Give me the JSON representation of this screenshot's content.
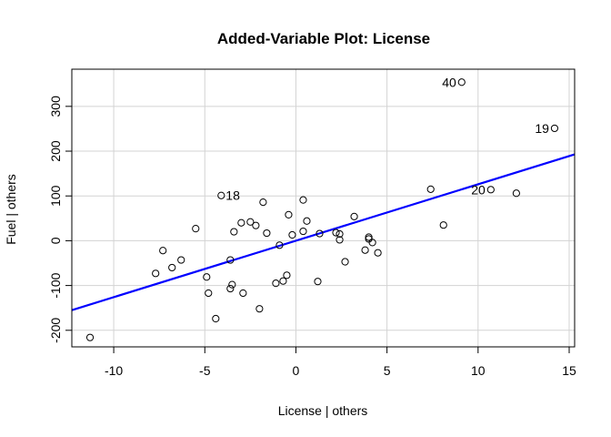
{
  "chart_data": {
    "type": "scatter",
    "title": "Added-Variable Plot: License",
    "xlabel": "License | others",
    "ylabel": "Fuel  | others",
    "xlim": [
      -12.3,
      15.3
    ],
    "ylim": [
      -237,
      383
    ],
    "xticks": [
      -10,
      -5,
      0,
      5,
      10,
      15
    ],
    "yticks": [
      -200,
      -100,
      0,
      100,
      200,
      300
    ],
    "grid": true,
    "regression_line": {
      "slope": 12.6,
      "intercept": 0,
      "color": "#0000ff"
    },
    "points": [
      {
        "x": -11.3,
        "y": -216
      },
      {
        "x": -7.7,
        "y": -73
      },
      {
        "x": -7.3,
        "y": -22
      },
      {
        "x": -6.8,
        "y": -60
      },
      {
        "x": -6.3,
        "y": -43
      },
      {
        "x": -5.5,
        "y": 27
      },
      {
        "x": -4.9,
        "y": -81
      },
      {
        "x": -4.8,
        "y": -117
      },
      {
        "x": -4.4,
        "y": -174
      },
      {
        "x": -4.1,
        "y": 101,
        "label": "18"
      },
      {
        "x": -3.6,
        "y": -43
      },
      {
        "x": -3.5,
        "y": -98
      },
      {
        "x": -3.6,
        "y": -107
      },
      {
        "x": -3.4,
        "y": 20
      },
      {
        "x": -3.0,
        "y": 40
      },
      {
        "x": -2.9,
        "y": -117
      },
      {
        "x": -2.5,
        "y": 42
      },
      {
        "x": -2.2,
        "y": 34
      },
      {
        "x": -2.0,
        "y": -152
      },
      {
        "x": -1.8,
        "y": 86
      },
      {
        "x": -1.6,
        "y": 17
      },
      {
        "x": -1.1,
        "y": -95
      },
      {
        "x": -0.9,
        "y": -10
      },
      {
        "x": -0.7,
        "y": -90
      },
      {
        "x": -0.5,
        "y": -77
      },
      {
        "x": -0.4,
        "y": 58
      },
      {
        "x": -0.2,
        "y": 13
      },
      {
        "x": 0.4,
        "y": 91
      },
      {
        "x": 0.4,
        "y": 21
      },
      {
        "x": 0.6,
        "y": 44
      },
      {
        "x": 1.2,
        "y": -91
      },
      {
        "x": 1.3,
        "y": 16
      },
      {
        "x": 2.2,
        "y": 18
      },
      {
        "x": 2.4,
        "y": 2
      },
      {
        "x": 2.4,
        "y": 15
      },
      {
        "x": 2.7,
        "y": -47
      },
      {
        "x": 3.2,
        "y": 54
      },
      {
        "x": 3.8,
        "y": -21
      },
      {
        "x": 4.0,
        "y": 4
      },
      {
        "x": 4.0,
        "y": 8
      },
      {
        "x": 4.2,
        "y": -4
      },
      {
        "x": 4.5,
        "y": -27
      },
      {
        "x": 7.4,
        "y": 115
      },
      {
        "x": 8.1,
        "y": 35
      },
      {
        "x": 9.1,
        "y": 354,
        "label": "40"
      },
      {
        "x": 10.7,
        "y": 114,
        "label": "20"
      },
      {
        "x": 12.1,
        "y": 106
      },
      {
        "x": 14.2,
        "y": 251,
        "label": "19"
      }
    ]
  }
}
